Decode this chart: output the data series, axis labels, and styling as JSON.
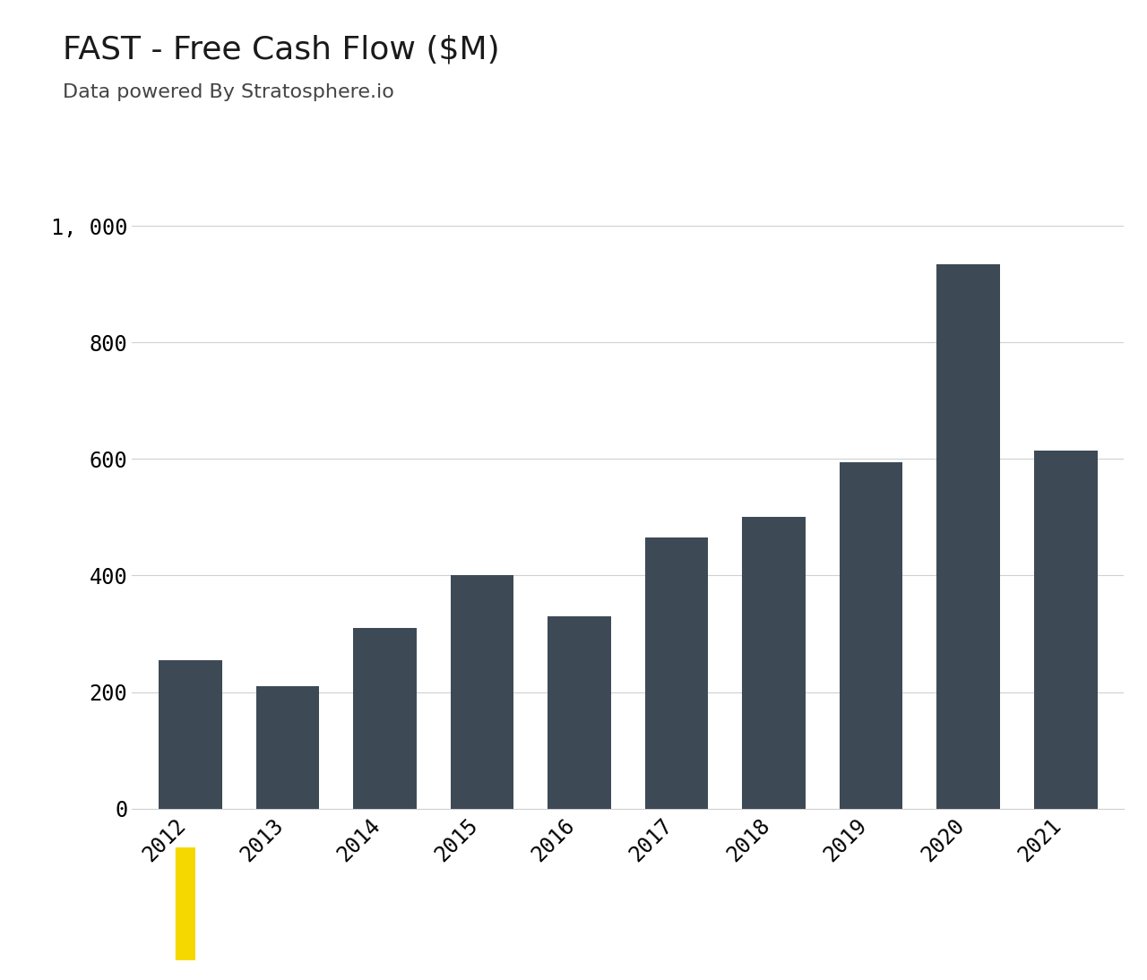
{
  "title": "FAST - Free Cash Flow ($M)",
  "subtitle": "Data powered By Stratosphere.io",
  "years": [
    "2012",
    "2013",
    "2014",
    "2015",
    "2016",
    "2017",
    "2018",
    "2019",
    "2020",
    "2021"
  ],
  "values": [
    255,
    210,
    310,
    400,
    330,
    465,
    500,
    595,
    935,
    615
  ],
  "bar_color": "#3d4a56",
  "background_color": "#ffffff",
  "grid_color": "#d0d0d0",
  "title_fontsize": 26,
  "subtitle_fontsize": 16,
  "tick_fontsize": 17,
  "ylim": [
    0,
    1060
  ],
  "yticks": [
    0,
    200,
    400,
    600,
    800,
    1000
  ],
  "ytick_labels": [
    "0",
    "200",
    "400",
    "600",
    "800",
    "1, 000"
  ],
  "logo_color": "#3d4a56",
  "logo_yellow": "#f5d800",
  "bar_width": 0.65
}
